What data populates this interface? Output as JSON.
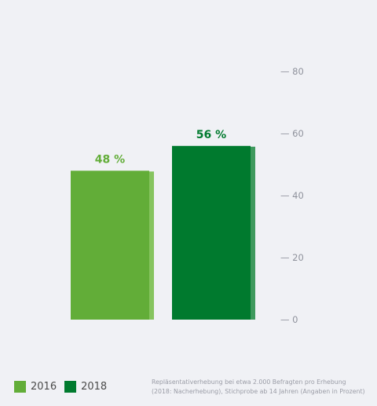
{
  "chart_data": {
    "type": "bar",
    "categories": [
      "2016",
      "2018"
    ],
    "values": [
      48,
      56
    ],
    "value_labels": [
      "48 %",
      "56 %"
    ],
    "y_ticks": [
      0,
      20,
      40,
      60,
      80
    ],
    "y_tick_labels": [
      "— 0",
      "— 20",
      "— 40",
      "— 60",
      "— 80"
    ],
    "ylim": [
      0,
      80
    ],
    "grid": false,
    "legend_position": "bottom-left",
    "colors": [
      "#62ad38",
      "#007a2e"
    ],
    "label_colors": [
      "#62ad38",
      "#007a2e"
    ],
    "side_colors": [
      "#86c45f",
      "#3f9a5e"
    ]
  },
  "legend": {
    "items": [
      {
        "label": "2016",
        "color": "#62ad38"
      },
      {
        "label": "2018",
        "color": "#007a2e"
      }
    ]
  },
  "footnote": {
    "line1": "Repläsentativerhebung bei etwa 2.000 Befragten pro Erhebung",
    "line2": "(2018: Nacherhebung), Stichprobe ab 14 Jahren (Angaben in Prozent)"
  },
  "colors": {
    "background": "#f0f1f5",
    "axis_text": "#8f929c"
  }
}
